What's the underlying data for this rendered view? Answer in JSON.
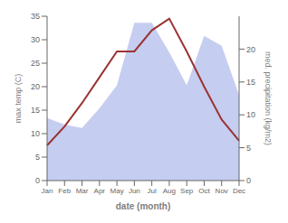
{
  "chart_data": {
    "type": "line",
    "xlabel": "date (month)",
    "ylabel": "max temp (C)",
    "y2label": "med. precipitation (kg/m2)",
    "categories": [
      "Jan",
      "Feb",
      "Mar",
      "Apr",
      "May",
      "Jun",
      "Jul",
      "Aug",
      "Sep",
      "Oct",
      "Nov",
      "Dec"
    ],
    "series": [
      {
        "type": "area",
        "axis": "y2",
        "color": "#c5cdf0",
        "values": [
          9.5,
          8.5,
          8.0,
          11.0,
          14.5,
          24.0,
          24.0,
          19.5,
          14.5,
          22.0,
          20.5,
          13.0
        ]
      },
      {
        "type": "line",
        "color": "#993333",
        "values": [
          7.5,
          11.5,
          16.5,
          22.0,
          27.5,
          27.5,
          32.0,
          34.5,
          27.5,
          20.0,
          13.0,
          8.5
        ]
      }
    ],
    "ylim": [
      0,
      35
    ],
    "yticks": [
      0,
      5,
      10,
      15,
      20,
      25,
      30,
      35
    ],
    "y2lim": [
      0,
      25
    ],
    "y2ticks": [
      0,
      5,
      10,
      15,
      20
    ],
    "grid": false
  }
}
